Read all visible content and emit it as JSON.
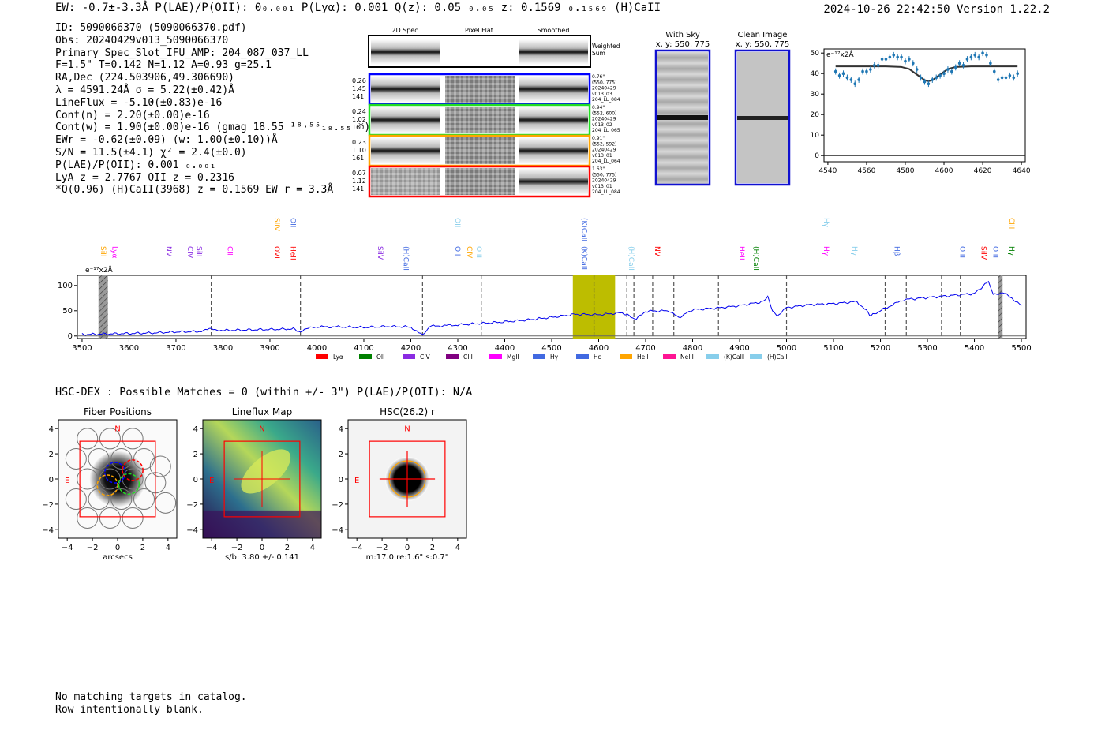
{
  "header": {
    "left": "EW: -0.7±-3.3Å  P(LAE)/P(OII): 0₀.₀₀₁  P(Lyα): 0.001  Q(z): 0.05 ₀.₀₅  z: 0.1569 ₀.₁₅₆₉  (H)CaII",
    "right": "2024-10-26 22:42:50  Version 1.22.2"
  },
  "info_lines": [
    "ID: 5090066370 (5090066370.pdf)",
    "Obs: 20240429v013_5090066370",
    "Primary Spec_Slot_IFU_AMP: 204_087_037_LL",
    "F=1.5\"  T=0.142  N=1.12  A=0.93  g=25.1",
    "RA,Dec (224.503906,49.306690)",
    "λ = 4591.24Å  σ = 5.22(±0.42)Å",
    "LineFlux = -5.10(±0.83)e-16",
    "Cont(n) = 2.20(±0.00)e-16",
    "Cont(w) = 1.90(±0.00)e-16 (gmag 18.55 ¹⁸·⁵⁵₁₈.₅₅ *)",
    "EWr = -0.62(±0.09) (w: 1.00(±0.10))Å",
    "S/N = 11.5(±4.1)  χ² = 2.4(±0.0)",
    "P(LAE)/P(OII): 0.001 ₀.₀₀₁",
    "LyA z = 2.7767  OII z = 0.2316",
    "*Q(0.96) (H)CaII(3968) z = 0.1569  EW r = 3.3Å"
  ],
  "cutouts": {
    "col_titles": [
      "2D Spec",
      "Pixel Flat",
      "Smoothed"
    ],
    "weighted_label": "Weighted Sum",
    "rows": [
      {
        "left": [
          "0.26",
          "1.45",
          "141"
        ],
        "right": [
          "0.76\"",
          "(550, 775)",
          "20240429",
          "v013_03",
          "204_LL_084"
        ],
        "color": "#0000ff"
      },
      {
        "left": [
          "0.24",
          "1.02",
          "160"
        ],
        "right": [
          "0.94\"",
          "(552, 600)",
          "20240429",
          "v013_02",
          "204_LL_065"
        ],
        "color": "#22dd22"
      },
      {
        "left": [
          "0.23",
          "1.10",
          "161"
        ],
        "right": [
          "0.91\"",
          "(552, 592)",
          "20240429",
          "v013_01",
          "204_LL_064"
        ],
        "color": "#ffa500"
      },
      {
        "left": [
          "0.07",
          "1.12",
          "141"
        ],
        "right": [
          "1.63\"",
          "(550, 775)",
          "20240429",
          "v013_01",
          "204_LL_084"
        ],
        "color": "#ff0000"
      }
    ]
  },
  "ccd": {
    "with_sky_title": "With Sky",
    "with_sky_sub": "x, y: 550, 775",
    "clean_title": "Clean Image",
    "clean_sub": "x, y: 550, 775"
  },
  "zoom_chart": {
    "type": "scatter",
    "ylabel": "e⁻¹⁷x2Å",
    "xlim": [
      4538,
      4642
    ],
    "ylim": [
      -3,
      52
    ],
    "xticks": [
      4540,
      4560,
      4580,
      4600,
      4620,
      4640
    ],
    "yticks": [
      0,
      10,
      20,
      30,
      40,
      50
    ],
    "points_x": [
      4544,
      4546,
      4548,
      4550,
      4552,
      4554,
      4556,
      4558,
      4560,
      4562,
      4564,
      4566,
      4568,
      4570,
      4572,
      4574,
      4576,
      4578,
      4580,
      4582,
      4584,
      4586,
      4588,
      4590,
      4592,
      4594,
      4596,
      4598,
      4600,
      4602,
      4604,
      4606,
      4608,
      4610,
      4612,
      4614,
      4616,
      4618,
      4620,
      4622,
      4624,
      4626,
      4628,
      4630,
      4632,
      4634,
      4636,
      4638
    ],
    "points_y": [
      41,
      39,
      40,
      38,
      37,
      35,
      37,
      41,
      41,
      42,
      44,
      44,
      47,
      47,
      48,
      49,
      48,
      48,
      46,
      47,
      45,
      42,
      38,
      36,
      35,
      37,
      38,
      39,
      40,
      42,
      41,
      43,
      45,
      44,
      47,
      48,
      49,
      48,
      50,
      49,
      45,
      41,
      37,
      38,
      38,
      39,
      38,
      40
    ],
    "fit_x": [
      4544,
      4570,
      4578,
      4582,
      4586,
      4590,
      4592,
      4594,
      4598,
      4602,
      4606,
      4614,
      4638
    ],
    "fit_y": [
      43.5,
      43.5,
      43.2,
      42.2,
      39.5,
      36.8,
      36.3,
      36.8,
      39.5,
      42.2,
      43.2,
      43.5,
      43.5
    ]
  },
  "chart_data": {
    "type": "line",
    "title": "",
    "xlabel": "",
    "ylabel": "e⁻¹⁷x2Å",
    "xlim": [
      3490,
      5510
    ],
    "ylim": [
      -5,
      120
    ],
    "xticks": [
      3500,
      3600,
      3700,
      3800,
      3900,
      4000,
      4100,
      4200,
      4300,
      4400,
      4500,
      4600,
      4700,
      4800,
      4900,
      5000,
      5100,
      5200,
      5300,
      5400,
      5500
    ],
    "yticks": [
      0,
      50,
      100
    ],
    "x": [
      3500,
      3550,
      3600,
      3650,
      3700,
      3750,
      3775,
      3800,
      3850,
      3900,
      3950,
      3965,
      3990,
      4050,
      4100,
      4150,
      4200,
      4225,
      4240,
      4300,
      4350,
      4400,
      4450,
      4500,
      4550,
      4600,
      4650,
      4680,
      4700,
      4750,
      4770,
      4800,
      4850,
      4900,
      4950,
      4960,
      4970,
      4980,
      5000,
      5050,
      5100,
      5150,
      5170,
      5180,
      5210,
      5250,
      5300,
      5350,
      5400,
      5430,
      5440,
      5460,
      5480,
      5500
    ],
    "y": [
      3,
      4,
      5,
      6,
      8,
      9,
      14,
      11,
      12,
      13,
      14,
      8,
      18,
      18,
      17,
      19,
      18,
      1,
      19,
      22,
      25,
      28,
      32,
      37,
      43,
      42,
      46,
      33,
      49,
      50,
      36,
      52,
      55,
      60,
      68,
      78,
      50,
      40,
      56,
      62,
      64,
      68,
      50,
      40,
      55,
      72,
      76,
      80,
      84,
      108,
      82,
      86,
      75,
      60
    ],
    "bands": [
      {
        "from": 4545,
        "to": 4635,
        "color": "#bdbd00"
      }
    ],
    "dashed_lines": [
      3775,
      3965,
      4225,
      4350,
      4590,
      4660,
      4675,
      4715,
      4760,
      4855,
      5000,
      5210,
      5255,
      5330,
      5370
    ],
    "masked": [
      3535,
      3555,
      5450,
      5460
    ],
    "legend": [
      {
        "label": "Lyα",
        "color": "#ff0000"
      },
      {
        "label": "OII",
        "color": "#008000"
      },
      {
        "label": "CIV",
        "color": "#8a2be2"
      },
      {
        "label": "CIII",
        "color": "#800080"
      },
      {
        "label": "MgII",
        "color": "#ff00ff"
      },
      {
        "label": "Hγ",
        "color": "#4169e1"
      },
      {
        "label": "Hε",
        "color": "#4169e1"
      },
      {
        "label": "HeII",
        "color": "#ffa500"
      },
      {
        "label": "NeIII",
        "color": "#ff1493"
      },
      {
        "label": "(K)CaII",
        "color": "#87ceeb"
      },
      {
        "label": "(H)CaII",
        "color": "#87ceeb"
      }
    ],
    "line_labels": [
      {
        "x": 3540,
        "text": "SiII",
        "color": "#ffa500",
        "high": false
      },
      {
        "x": 3565,
        "text": "Lyα",
        "color": "#ff00ff",
        "high": false
      },
      {
        "x": 3680,
        "text": "NV",
        "color": "#8a2be2",
        "high": false
      },
      {
        "x": 3725,
        "text": "CIV",
        "color": "#8a2be2",
        "high": false
      },
      {
        "x": 3745,
        "text": "SiII",
        "color": "#8a2be2",
        "high": false
      },
      {
        "x": 3810,
        "text": "CII",
        "color": "#ff00ff",
        "high": false
      },
      {
        "x": 3910,
        "text": "OVI",
        "color": "#ff0000",
        "high": false
      },
      {
        "x": 3910,
        "text": "SiIV",
        "color": "#ffa500",
        "high": true
      },
      {
        "x": 3945,
        "text": "HeII",
        "color": "#ff0000",
        "high": false
      },
      {
        "x": 3945,
        "text": "OII",
        "color": "#4169e1",
        "high": true
      },
      {
        "x": 4130,
        "text": "SiIV",
        "color": "#8a2be2",
        "high": false
      },
      {
        "x": 4185,
        "text": "(H)CaII",
        "color": "#4169e1",
        "high": false
      },
      {
        "x": 4295,
        "text": "OII",
        "color": "#4169e1",
        "high": false
      },
      {
        "x": 4295,
        "text": "OII",
        "color": "#87ceeb",
        "high": true
      },
      {
        "x": 4320,
        "text": "CIV",
        "color": "#ffa500",
        "high": false
      },
      {
        "x": 4340,
        "text": "OIII",
        "color": "#87ceeb",
        "high": false
      },
      {
        "x": 4565,
        "text": "(K)CaII",
        "color": "#4169e1",
        "high": false
      },
      {
        "x": 4565,
        "text": "(K)CaII",
        "color": "#4169e1",
        "high": true
      },
      {
        "x": 4665,
        "text": "(H)CaII",
        "color": "#87ceeb",
        "high": false
      },
      {
        "x": 4720,
        "text": "NV",
        "color": "#ff0000",
        "high": false
      },
      {
        "x": 4900,
        "text": "HeII",
        "color": "#ff00ff",
        "high": false
      },
      {
        "x": 4930,
        "text": "(H)CaII",
        "color": "#008000",
        "high": false
      },
      {
        "x": 5080,
        "text": "Hγ",
        "color": "#ff00ff",
        "high": false
      },
      {
        "x": 5080,
        "text": "Hγ",
        "color": "#87ceeb",
        "high": true
      },
      {
        "x": 5140,
        "text": "Hγ",
        "color": "#87ceeb",
        "high": false
      },
      {
        "x": 5230,
        "text": "Hβ",
        "color": "#4169e1",
        "high": false
      },
      {
        "x": 5370,
        "text": "OIII",
        "color": "#4169e1",
        "high": false
      },
      {
        "x": 5415,
        "text": "SiIV",
        "color": "#ff0000",
        "high": false
      },
      {
        "x": 5440,
        "text": "OIII",
        "color": "#4169e1",
        "high": false
      },
      {
        "x": 5475,
        "text": "Hγ",
        "color": "#008000",
        "high": false
      },
      {
        "x": 5475,
        "text": "CIII",
        "color": "#ffa500",
        "high": true
      }
    ]
  },
  "hsc_line": "HSC-DEX : Possible Matches = 0 (within +/- 3\")  P(LAE)/P(OII): N/A",
  "maps": {
    "ticks": [
      -4,
      -2,
      0,
      2,
      4
    ],
    "fiber": {
      "title": "Fiber Positions",
      "xlabel": "arcsecs",
      "n": "N",
      "e": "E"
    },
    "lineflux": {
      "title": "Lineflux Map",
      "xlabel": "s/b: 3.80 +/- 0.141",
      "n": "N",
      "e": "E"
    },
    "hsc": {
      "title": "HSC(26.2) r",
      "xlabel": "m:17.0  re:1.6\"  s:0.7\"",
      "n": "N",
      "e": "E"
    }
  },
  "catalog_note": [
    "No matching targets in catalog.",
    "Row intentionally blank."
  ]
}
